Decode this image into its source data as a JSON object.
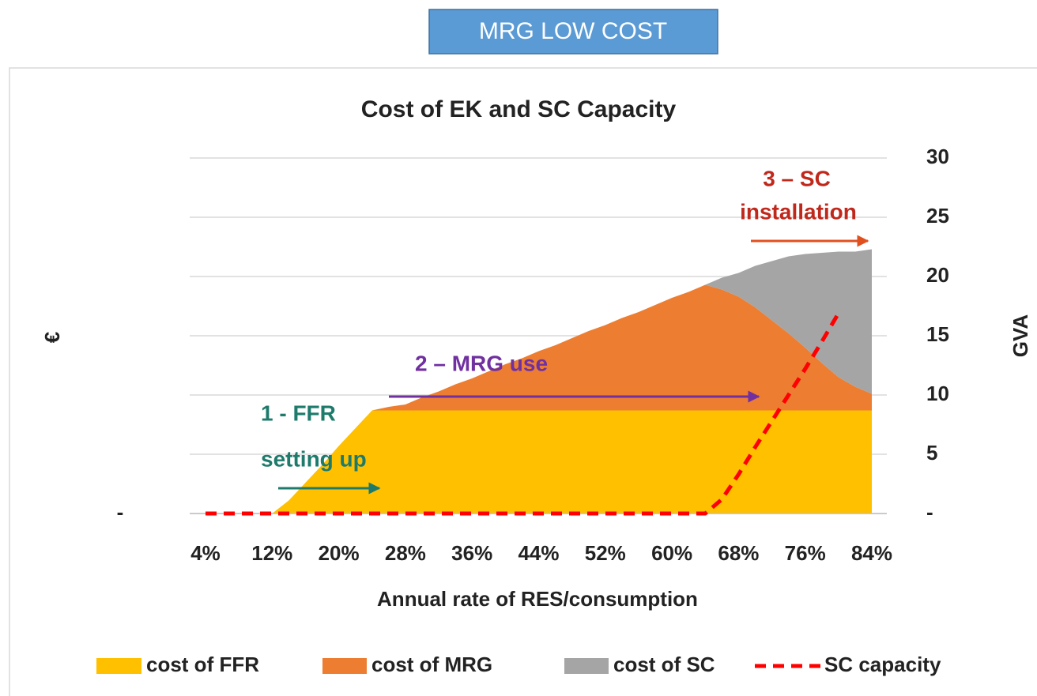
{
  "header": {
    "title": "MRG LOW COST"
  },
  "chart_data": {
    "type": "stacked_area",
    "title": "Cost of EK and SC Capacity",
    "x_label": "Annual rate of RES/consumption",
    "y_label": "€",
    "y2_label": "GVA",
    "categories": [
      "4%",
      null,
      null,
      null,
      "12%",
      null,
      null,
      null,
      "20%",
      null,
      null,
      null,
      "28%",
      null,
      null,
      null,
      "36%",
      null,
      null,
      null,
      "44%",
      null,
      null,
      null,
      "52%",
      null,
      null,
      null,
      "60%",
      null,
      null,
      null,
      "68%",
      null,
      null,
      null,
      "76%",
      null,
      null,
      null,
      "84%"
    ],
    "series": [
      {
        "name": "cost of FFR",
        "color": "#ffc000",
        "values": [
          0,
          0,
          0,
          0,
          0,
          1.1,
          2.6,
          4.1,
          5.7,
          7.2,
          8.7,
          8.7,
          8.7,
          8.7,
          8.7,
          8.7,
          8.7,
          8.7,
          8.7,
          8.7,
          8.7,
          8.7,
          8.7,
          8.7,
          8.7,
          8.7,
          8.7,
          8.7,
          8.7,
          8.7,
          8.7,
          8.7,
          8.7,
          8.7,
          8.7,
          8.7,
          8.7,
          8.7,
          8.7,
          8.7,
          8.7
        ]
      },
      {
        "name": "cost of MRG",
        "color": "#ed7d31",
        "values": [
          0,
          0,
          0,
          0,
          0,
          0,
          0,
          0,
          0,
          0,
          0,
          0.3,
          0.5,
          1.1,
          1.6,
          2.2,
          2.7,
          3.3,
          3.9,
          4.4,
          5.0,
          5.5,
          6.1,
          6.7,
          7.2,
          7.8,
          8.3,
          8.9,
          9.5,
          10.0,
          10.6,
          10.2,
          9.6,
          8.7,
          7.6,
          6.5,
          5.3,
          4.0,
          2.8,
          2.0,
          1.4
        ]
      },
      {
        "name": "cost of SC",
        "color": "#a5a5a5",
        "values": [
          0,
          0,
          0,
          0,
          0,
          0,
          0,
          0,
          0,
          0,
          0,
          0,
          0,
          0,
          0,
          0,
          0,
          0,
          0,
          0,
          0,
          0,
          0,
          0,
          0,
          0,
          0,
          0,
          0,
          0,
          0,
          1.0,
          2.0,
          3.5,
          5.0,
          6.5,
          7.9,
          9.3,
          10.6,
          11.4,
          12.2
        ]
      },
      {
        "name": "SC capacity",
        "color": "#ff0000",
        "type": "line",
        "dashed": true,
        "axis": "y2",
        "values": [
          0,
          0,
          0,
          0,
          0,
          0,
          0,
          0,
          0,
          0,
          0,
          0,
          0,
          0,
          0,
          0,
          0,
          0,
          0,
          0,
          0,
          0,
          0,
          0,
          0,
          0,
          0,
          0,
          0,
          0,
          0,
          1.2,
          3.3,
          5.6,
          7.8,
          10.0,
          12.2,
          14.5,
          16.9,
          null,
          null
        ]
      }
    ],
    "ylim": [
      0,
      30
    ],
    "yticks": [
      {
        "value": 0,
        "label": "-"
      }
    ],
    "y2lim": [
      0,
      30
    ],
    "y2ticks": [
      {
        "value": 0,
        "label": "-"
      },
      5,
      10,
      15,
      20,
      25,
      30
    ],
    "grid": true,
    "legend": "bottom",
    "annotations": [
      {
        "lines": [
          "1 - FFR",
          "setting up"
        ],
        "color": "#1e7b6c"
      },
      {
        "lines": [
          "2 – MRG use"
        ],
        "color": "#7030a0"
      },
      {
        "lines": [
          "3 – SC",
          "installation"
        ],
        "color": "#c0281c"
      }
    ]
  }
}
